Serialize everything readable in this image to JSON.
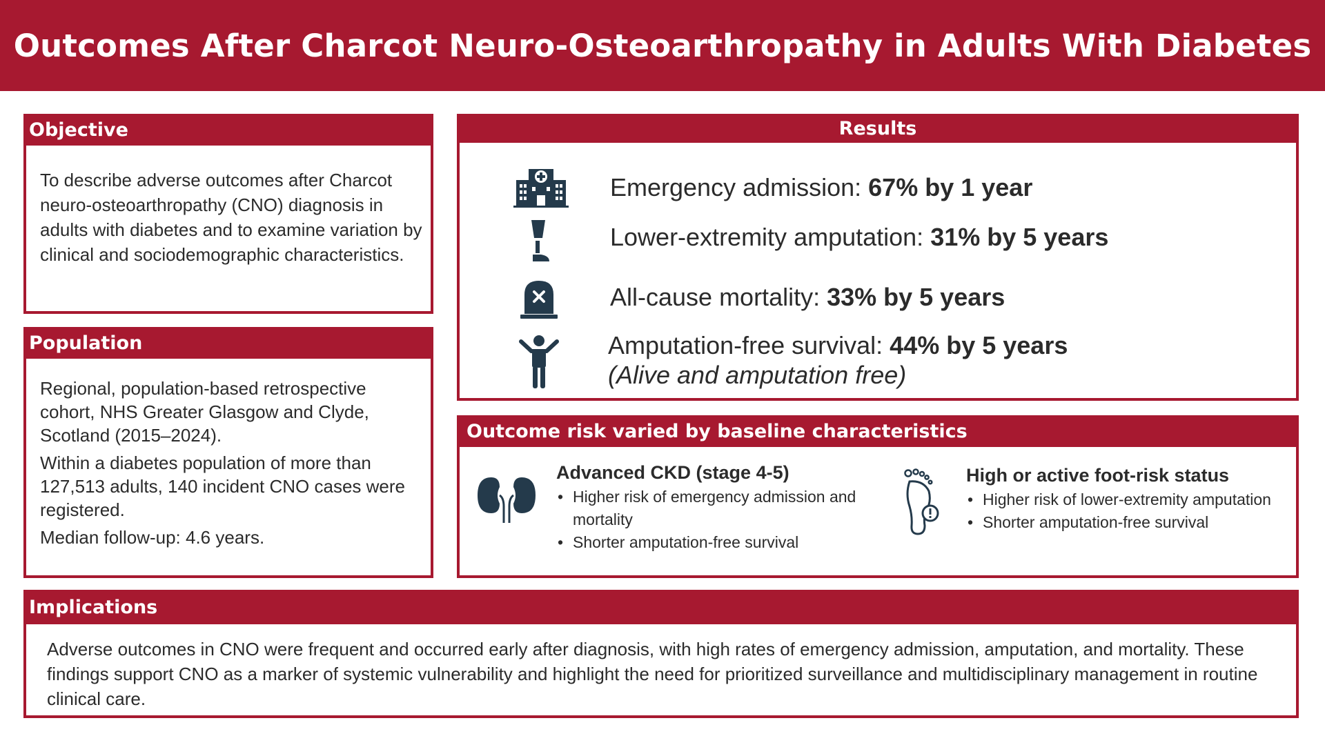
{
  "title": "Outcomes After Charcot Neuro-Osteoarthropathy in Adults With Diabetes",
  "objective": {
    "heading": "Objective",
    "text": "To describe adverse outcomes after Charcot neuro-osteoarthropathy (CNO) diagnosis in adults with diabetes and to examine variation by clinical and sociodemographic characteristics."
  },
  "population": {
    "heading": "Population",
    "paragraphs": [
      "Regional, population-based retrospective cohort, NHS Greater Glasgow and Clyde, Scotland (2015–2024).",
      "Within a diabetes population of more than 127,513 adults, 140 incident CNO cases were registered.",
      "Median follow-up: 4.6 years."
    ]
  },
  "results": {
    "heading": "Results",
    "items": [
      {
        "icon": "hospital-icon",
        "label": "Emergency admission: ",
        "value": "67% by 1 year"
      },
      {
        "icon": "prosthetic-leg-icon",
        "label": "Lower-extremity amputation: ",
        "value": "31% by 5 years"
      },
      {
        "icon": "tombstone-icon",
        "label": "All-cause mortality: ",
        "value": "33% by 5 years"
      },
      {
        "icon": "person-icon",
        "label": "Amputation-free survival: ",
        "value": "44% by 5 years",
        "sub": "(Alive and amputation free)"
      }
    ]
  },
  "risk": {
    "heading": "Outcome risk varied by baseline characteristics",
    "groups": [
      {
        "icon": "kidneys-icon",
        "title": "Advanced CKD (stage 4-5)",
        "bullets": [
          "Higher risk of emergency admission and mortality",
          "Shorter amputation-free survival"
        ]
      },
      {
        "icon": "foot-alert-icon",
        "title": "High or active foot-risk status",
        "bullets": [
          "Higher risk of lower-extremity amputation",
          "Shorter amputation-free survival"
        ]
      }
    ]
  },
  "implications": {
    "heading": "Implications",
    "text": "Adverse outcomes in CNO were frequent and occurred early after diagnosis, with high rates of emergency admission, amputation, and mortality. These findings support CNO as a marker of systemic vulnerability and highlight the need for prioritized surveillance and multidisciplinary management in routine clinical care."
  },
  "colors": {
    "accent": "#a71930",
    "icon": "#243a4b",
    "text": "#2b2b2b"
  }
}
